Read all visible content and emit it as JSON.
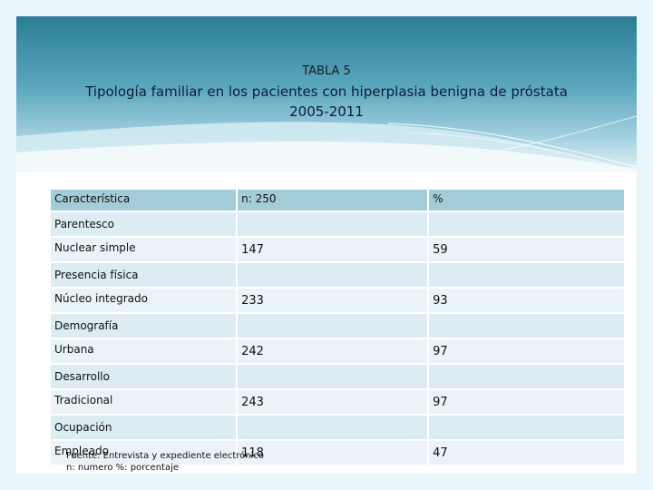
{
  "slide": {
    "table_label": "TABLA 5",
    "title_line1": "Tipología familiar en los pacientes con hiperplasia benigna de próstata",
    "title_line2": "2005-2011"
  },
  "table": {
    "headers": [
      "Característica",
      "n: 250",
      "%"
    ],
    "sections": [
      {
        "category": "Parentesco",
        "item": "Nuclear simple",
        "n": "147",
        "pct": "59"
      },
      {
        "category": "Presencia física",
        "item": "Núcleo integrado",
        "n": "233",
        "pct": "93"
      },
      {
        "category": "Demografía",
        "item": "Urbana",
        "n": "242",
        "pct": "97"
      },
      {
        "category": "Desarrollo",
        "item": "Tradicional",
        "n": "243",
        "pct": "97"
      },
      {
        "category": "Ocupación",
        "item": "Empleado",
        "n": "118",
        "pct": "47"
      }
    ]
  },
  "footnote": {
    "line1": "Fuente: Entrevista y expediente electrónico",
    "line2": "n: numero %: porcentaje"
  },
  "colors": {
    "header_top": "#2d7f96",
    "header_bottom": "#cfe7ef",
    "table_header": "#a3ccd9",
    "table_row": "#eaf4f8"
  }
}
